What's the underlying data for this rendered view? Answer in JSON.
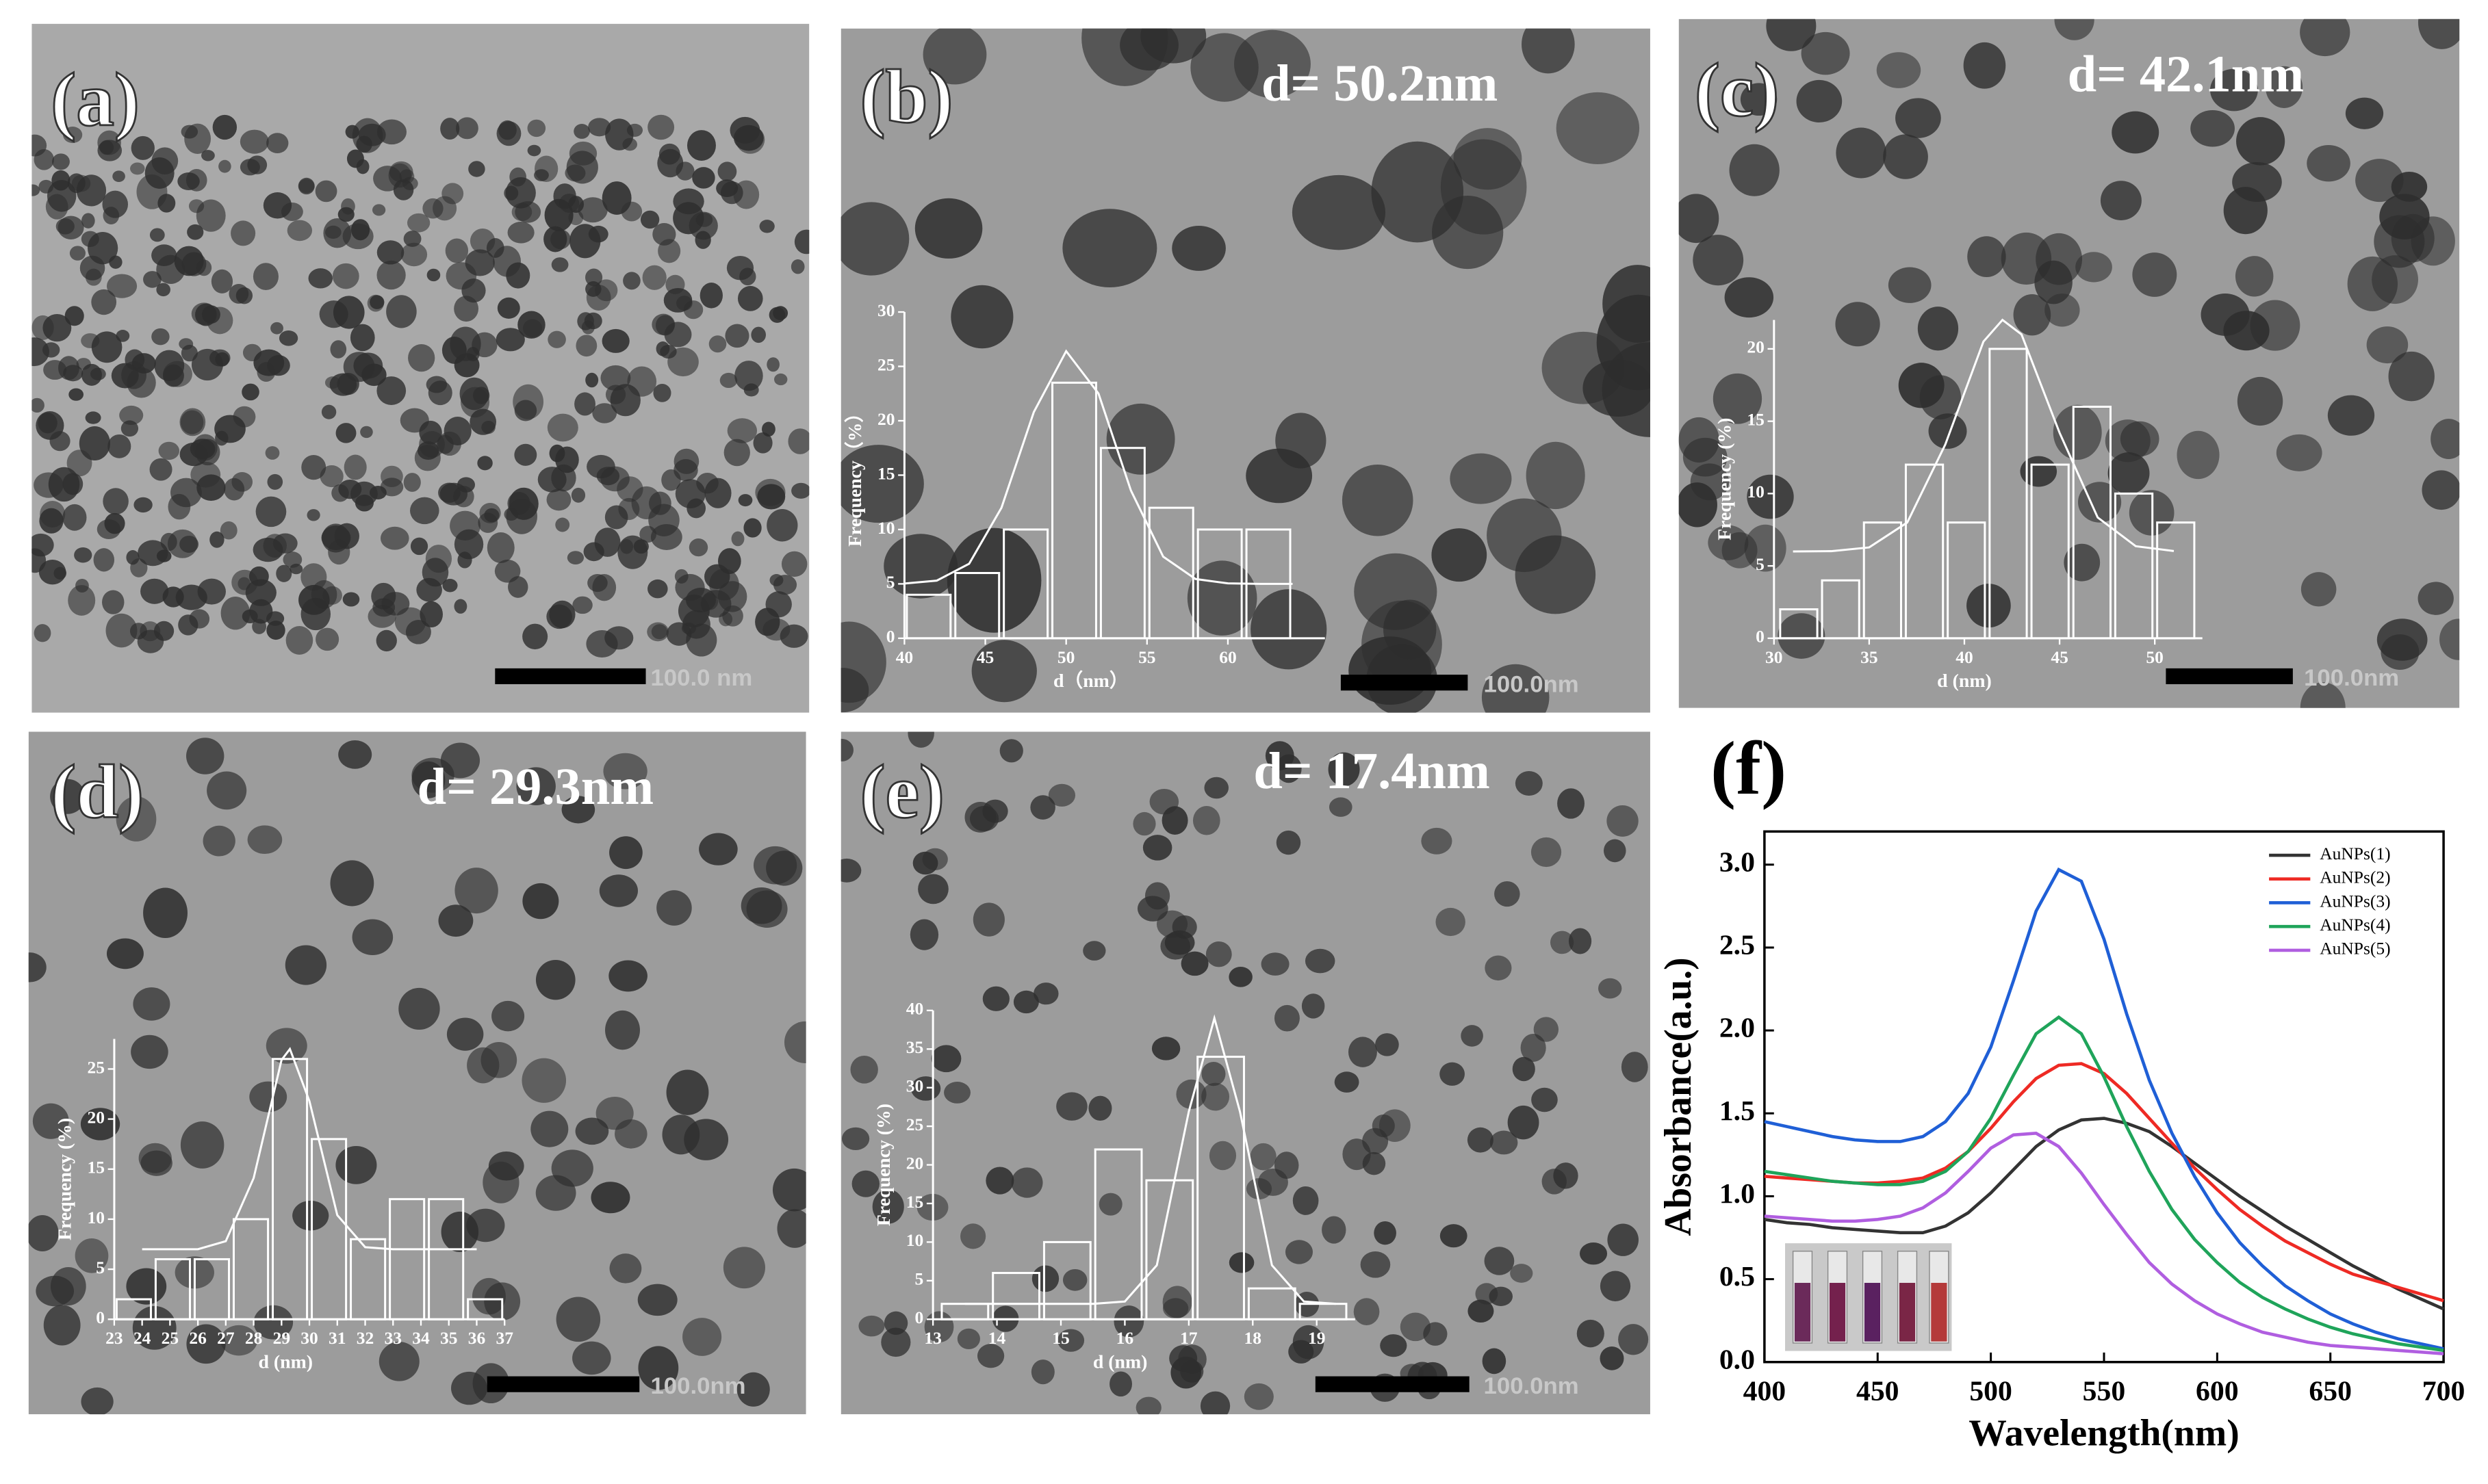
{
  "panels": [
    {
      "label": "(a)",
      "scale_bar": "100.0 nm"
    },
    {
      "label": "(b)",
      "annotation": "d= 50.2nm",
      "scale_bar": "100.0nm"
    },
    {
      "label": "(c)",
      "annotation": "d= 42.1nm",
      "scale_bar": "100.0nm"
    },
    {
      "label": "(d)",
      "annotation": "d= 29.3nm",
      "scale_bar": "100.0nm"
    },
    {
      "label": "(e)",
      "annotation": "d= 17.4nm",
      "scale_bar": "100.0nm"
    },
    {
      "label": "(f)"
    }
  ],
  "chart_data": [
    {
      "type": "histogram",
      "color": "#ffffff",
      "xlabel": "d（nm）",
      "ylabel": "Frequency（%）",
      "bins": [
        40,
        43,
        46,
        49,
        52,
        55,
        58,
        61,
        64
      ],
      "values": [
        4,
        6,
        10,
        23.5,
        17.5,
        12,
        10,
        10
      ],
      "xlim": [
        40,
        66
      ],
      "xticks": [
        40,
        45,
        50,
        55,
        60
      ],
      "ylim": [
        0,
        30
      ],
      "yticks": [
        0,
        5,
        10,
        15,
        20,
        25,
        30
      ],
      "fit": {
        "x": [
          40,
          42,
          44,
          46,
          48,
          50,
          52,
          54,
          56,
          58,
          60,
          62,
          64
        ],
        "y": [
          5.03,
          5.3,
          6.85,
          12,
          20.8,
          26.4,
          22.5,
          13.6,
          7.5,
          5.45,
          5.05,
          5,
          5
        ]
      }
    },
    {
      "type": "histogram",
      "color": "#ffffff",
      "xlabel": "d (nm)",
      "ylabel": "Frequency (%)",
      "bins": [
        30.2,
        32.4,
        34.6,
        36.8,
        39,
        41.2,
        43.4,
        45.6,
        47.8,
        50,
        52.2
      ],
      "values": [
        2,
        4,
        8,
        12,
        8,
        20,
        12,
        16,
        10,
        8
      ],
      "xlim": [
        30,
        52.5
      ],
      "xticks": [
        30,
        35,
        40,
        45,
        50
      ],
      "ylim": [
        0,
        22
      ],
      "yticks": [
        0,
        5,
        10,
        15,
        20
      ],
      "fit": {
        "x": [
          31,
          33,
          35,
          37,
          39,
          41,
          42,
          43,
          45,
          47,
          49,
          51
        ],
        "y": [
          6,
          6.02,
          6.28,
          8,
          13.4,
          20.5,
          22,
          21,
          14.2,
          8.35,
          6.36,
          6.03
        ]
      }
    },
    {
      "type": "histogram",
      "color": "#ffffff",
      "xlabel": "d (nm)",
      "ylabel": "Frequency (%)",
      "bins": [
        23,
        24.4,
        25.8,
        27.2,
        28.6,
        30,
        31.4,
        32.8,
        34.2,
        35.6,
        37
      ],
      "values": [
        2,
        6,
        6,
        10,
        26,
        18,
        8,
        12,
        12,
        2
      ],
      "xlim": [
        23,
        37
      ],
      "xticks": [
        23,
        24,
        25,
        26,
        27,
        28,
        29,
        30,
        31,
        32,
        33,
        34,
        35,
        36,
        37
      ],
      "ylim": [
        0,
        28
      ],
      "yticks": [
        0,
        5,
        10,
        15,
        20,
        25
      ],
      "fit": {
        "x": [
          24,
          25,
          26,
          27,
          28,
          29,
          29.3,
          30,
          31,
          32,
          33,
          34,
          35,
          36
        ],
        "y": [
          7,
          7,
          7,
          7.8,
          14.1,
          25.9,
          27,
          21.8,
          10.4,
          7.2,
          7,
          7,
          7,
          7
        ]
      }
    },
    {
      "type": "histogram",
      "color": "#ffffff",
      "xlabel": "d (nm)",
      "ylabel": "Frequency (%)",
      "bins": [
        13.1,
        13.9,
        14.7,
        15.5,
        16.3,
        17.1,
        17.9,
        18.7,
        19.5
      ],
      "values": [
        2,
        6,
        10,
        22,
        18,
        34,
        4,
        2
      ],
      "xlim": [
        13,
        19.6
      ],
      "xticks": [
        13,
        14,
        15,
        16,
        17,
        18,
        19
      ],
      "ylim": [
        0,
        40
      ],
      "yticks": [
        0,
        5,
        10,
        15,
        20,
        25,
        30,
        35,
        40
      ],
      "fit": {
        "x": [
          13.5,
          14.5,
          15.5,
          16,
          16.5,
          17,
          17.4,
          17.8,
          18.3,
          18.8,
          19.3
        ],
        "y": [
          2,
          2,
          2,
          2.3,
          7,
          26.9,
          39,
          26.9,
          7,
          2.3,
          2
        ]
      }
    },
    {
      "type": "line",
      "xlabel": "Wavelength(nm)",
      "ylabel": "Absorbance(a.u.)",
      "legend": "upper right",
      "x": [
        400,
        410,
        420,
        430,
        440,
        450,
        460,
        470,
        480,
        490,
        500,
        510,
        520,
        530,
        540,
        550,
        560,
        570,
        580,
        590,
        600,
        610,
        620,
        630,
        640,
        650,
        660,
        670,
        680,
        690,
        700
      ],
      "xlim": [
        400,
        700
      ],
      "xticks": [
        400,
        450,
        500,
        550,
        600,
        650,
        700
      ],
      "ylim": [
        0,
        3.2
      ],
      "yticks": [
        {
          "value": 0,
          "label": "0.0"
        },
        0.5,
        {
          "value": 1,
          "label": "1.0"
        },
        1.5,
        {
          "value": 2,
          "label": "2.0"
        },
        2.5,
        {
          "value": 3,
          "label": "3.0"
        }
      ],
      "series": [
        {
          "name": "AuNPs(1)",
          "color": "#333333",
          "values": [
            0.86,
            0.84,
            0.83,
            0.81,
            0.8,
            0.79,
            0.78,
            0.78,
            0.82,
            0.9,
            1.02,
            1.16,
            1.3,
            1.4,
            1.46,
            1.47,
            1.44,
            1.39,
            1.3,
            1.2,
            1.1,
            1.0,
            0.91,
            0.82,
            0.74,
            0.66,
            0.58,
            0.51,
            0.44,
            0.38,
            0.32
          ]
        },
        {
          "name": "AuNPs(2)",
          "color": "#ee2a24",
          "values": [
            1.12,
            1.11,
            1.1,
            1.09,
            1.08,
            1.08,
            1.09,
            1.11,
            1.17,
            1.27,
            1.41,
            1.57,
            1.71,
            1.79,
            1.8,
            1.74,
            1.62,
            1.47,
            1.32,
            1.17,
            1.04,
            0.92,
            0.82,
            0.73,
            0.66,
            0.59,
            0.53,
            0.49,
            0.45,
            0.41,
            0.37
          ]
        },
        {
          "name": "AuNPs(3)",
          "color": "#1f5fd6",
          "values": [
            1.45,
            1.42,
            1.39,
            1.36,
            1.34,
            1.33,
            1.33,
            1.36,
            1.45,
            1.62,
            1.9,
            2.3,
            2.72,
            2.97,
            2.9,
            2.55,
            2.1,
            1.7,
            1.38,
            1.12,
            0.9,
            0.72,
            0.58,
            0.46,
            0.37,
            0.29,
            0.23,
            0.18,
            0.14,
            0.11,
            0.08
          ]
        },
        {
          "name": "AuNPs(4)",
          "color": "#1fa45a",
          "values": [
            1.15,
            1.13,
            1.11,
            1.09,
            1.08,
            1.07,
            1.07,
            1.09,
            1.15,
            1.27,
            1.47,
            1.73,
            1.98,
            2.08,
            1.98,
            1.72,
            1.42,
            1.15,
            0.92,
            0.74,
            0.6,
            0.48,
            0.39,
            0.32,
            0.26,
            0.21,
            0.17,
            0.14,
            0.11,
            0.09,
            0.07
          ]
        },
        {
          "name": "AuNPs(5)",
          "color": "#b05ee0",
          "values": [
            0.88,
            0.87,
            0.86,
            0.85,
            0.85,
            0.86,
            0.88,
            0.93,
            1.02,
            1.15,
            1.29,
            1.37,
            1.38,
            1.3,
            1.14,
            0.95,
            0.77,
            0.6,
            0.47,
            0.37,
            0.29,
            0.23,
            0.18,
            0.15,
            0.12,
            0.1,
            0.09,
            0.08,
            0.07,
            0.06,
            0.05
          ]
        }
      ]
    }
  ]
}
